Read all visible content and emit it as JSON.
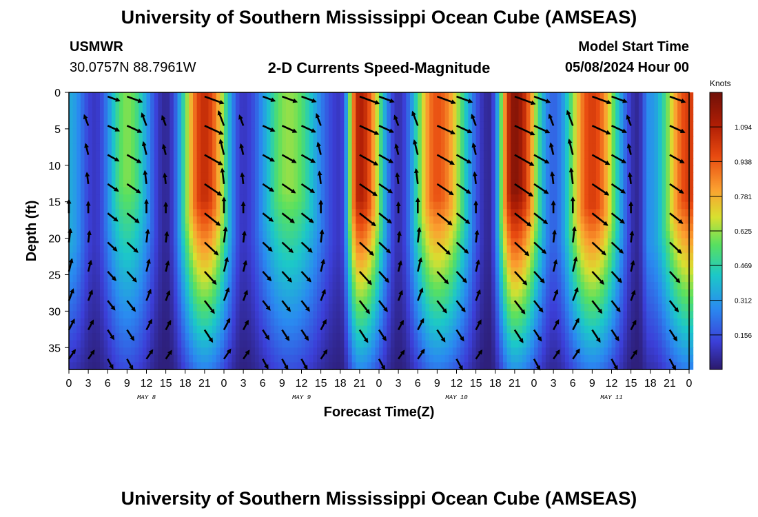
{
  "header": {
    "title": "University of Southern Mississippi Ocean Cube (AMSEAS)",
    "station": "USMWR",
    "coords": "30.0757N  88.7961W",
    "product": "2-D Currents Speed-Magnitude",
    "model_start_label": "Model Start Time",
    "model_start_value": "05/08/2024 Hour 00"
  },
  "footer": {
    "title": "University of Southern Mississippi Ocean Cube (AMSEAS)"
  },
  "chart_data": {
    "type": "heatmap",
    "title": "2-D Currents Speed-Magnitude",
    "xlabel": "Forecast Time(Z)",
    "ylabel": "Depth (ft)",
    "x_hours": [
      0,
      96
    ],
    "x_tick_labels": [
      "0",
      "3",
      "6",
      "9",
      "12",
      "15",
      "18",
      "21",
      "0",
      "3",
      "6",
      "9",
      "12",
      "15",
      "18",
      "21",
      "0",
      "3",
      "6",
      "9",
      "12",
      "15",
      "18",
      "21",
      "0",
      "3",
      "6",
      "9",
      "12",
      "15",
      "18",
      "21",
      "0"
    ],
    "day_labels": [
      {
        "label": "MAY 8",
        "hour": 12
      },
      {
        "label": "MAY 9",
        "hour": 36
      },
      {
        "label": "MAY 10",
        "hour": 60
      },
      {
        "label": "MAY 11",
        "hour": 84
      }
    ],
    "ylim": [
      0,
      38
    ],
    "y_ticks": [
      0,
      5,
      10,
      15,
      20,
      25,
      30,
      35
    ],
    "colorbar": {
      "unit": "Knots",
      "range": [
        0,
        1.25
      ],
      "tick_labels": [
        "0.156",
        "0.312",
        "0.469",
        "0.625",
        "0.781",
        "0.938",
        "1.094"
      ],
      "tick_values": [
        0.156,
        0.312,
        0.469,
        0.625,
        0.781,
        0.938,
        1.094
      ]
    },
    "speed_peaks": [
      {
        "hour": 0,
        "speed": 0.35,
        "bottom_depth": 38
      },
      {
        "hour": 4,
        "speed": 0.1,
        "bottom_depth": 38
      },
      {
        "hour": 9,
        "speed": 0.6,
        "bottom_depth": 22
      },
      {
        "hour": 15,
        "speed": 0.05,
        "bottom_depth": 38
      },
      {
        "hour": 21,
        "speed": 1.05,
        "bottom_depth": 26
      },
      {
        "hour": 27,
        "speed": 0.1,
        "bottom_depth": 38
      },
      {
        "hour": 34,
        "speed": 0.62,
        "bottom_depth": 24
      },
      {
        "hour": 42,
        "speed": 0.1,
        "bottom_depth": 38
      },
      {
        "hour": 45,
        "speed": 1.1,
        "bottom_depth": 26
      },
      {
        "hour": 51,
        "speed": 0.08,
        "bottom_depth": 38
      },
      {
        "hour": 57,
        "speed": 0.95,
        "bottom_depth": 26
      },
      {
        "hour": 65,
        "speed": 0.05,
        "bottom_depth": 38
      },
      {
        "hour": 69,
        "speed": 1.2,
        "bottom_depth": 24
      },
      {
        "hour": 75,
        "speed": 0.2,
        "bottom_depth": 38
      },
      {
        "hour": 81,
        "speed": 1.0,
        "bottom_depth": 28
      },
      {
        "hour": 88,
        "speed": 0.05,
        "bottom_depth": 38
      },
      {
        "hour": 90,
        "speed": 0.3,
        "bottom_depth": 38
      },
      {
        "hour": 96,
        "speed": 1.0,
        "bottom_depth": 26
      }
    ],
    "vector_columns_hours": [
      0,
      3,
      6,
      9,
      12,
      15,
      21,
      24,
      27,
      30,
      33,
      36,
      39,
      45,
      48,
      51,
      54,
      57,
      60,
      63,
      69,
      72,
      75,
      78,
      81,
      84,
      87,
      93,
      96
    ],
    "vector_rows_depth_ft": [
      0,
      4,
      8,
      12,
      16,
      20,
      24,
      28,
      32,
      36
    ],
    "vector_direction": "alternating ebb/flood with tide"
  }
}
